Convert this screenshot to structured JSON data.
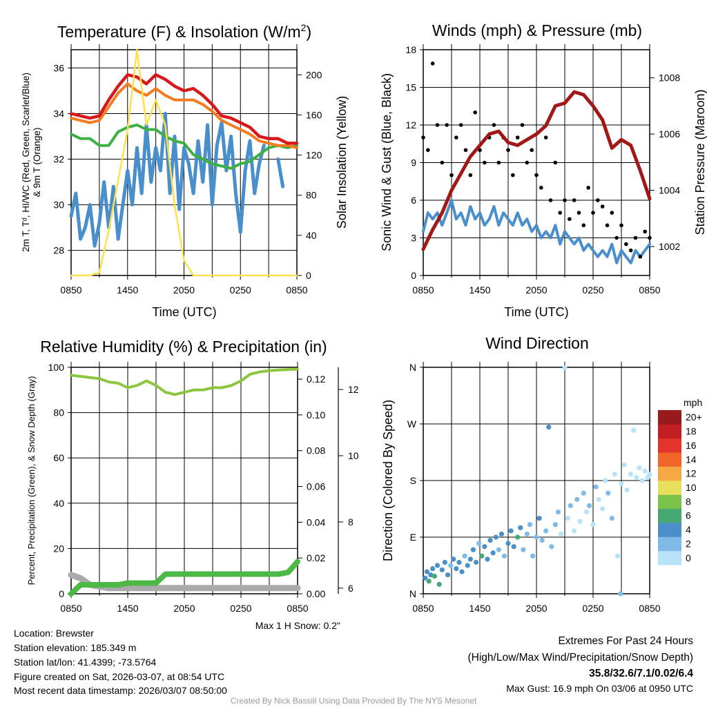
{
  "titles": {
    "temp_main": "Temperature (F) & Insolation (W/m",
    "temp_sup": "2",
    "temp_end": ")",
    "winds": "Winds (mph) & Pressure (mb)",
    "rh": "Relative Humidity (%) & Precipitation (in)",
    "wdir": "Wind Direction"
  },
  "axis_labels": {
    "time": "Time (UTC)",
    "temp_left_1": "2m T, Tᵈ, HI/WC (Red, Green, Scarlet/Blue)",
    "temp_left_2": "& 9m T (Orange)",
    "temp_right": "Solar Insolation (Yellow)",
    "wind_left": "Sonic Wind & Gust (Blue, Black)",
    "wind_right": "Station Pressure (Maroon)",
    "rh_left": "Percent, Precipitation (Green), & Snow Depth (Gray)",
    "wdir_left": "Direction (Colored By Speed)",
    "colorbar_unit": "mph"
  },
  "x_ticks": [
    "0850",
    "1450",
    "2050",
    "0250",
    "0850"
  ],
  "footer": {
    "location": "Location: Brewster",
    "elevation": "Station elevation: 185.349 m",
    "latlon": "Station lat/lon: 41.4399; -73.5764",
    "created": "Figure created on Sat, 2026-03-07, at 08:54 UTC",
    "recent": "Most recent data timestamp: 2026/03/07 08:50:00",
    "max_snow": "Max 1 H Snow: 0.2\"",
    "extremes_title": "Extremes For Past 24 Hours",
    "extremes_sub": "(High/Low/Max Wind/Precipitation/Snow Depth)",
    "extremes_values": "35.8/32.6/7.1/0.02/6.4",
    "max_gust": "Max Gust: 16.9 mph On 03/06 at 0950 UTC",
    "credit": "Created By Nick Bassill Using Data Provided By The NYS Mesonet"
  },
  "colors": {
    "temp": "#d7191c",
    "temp9m": "#f47b20",
    "green": "#3cb043",
    "blue": "#4a8fcc",
    "solar": "#ffe14d",
    "gust": "#000000",
    "pressure": "#a01818",
    "rh": "#8cc63f",
    "precip": "#4cb846",
    "snow": "#aaaaaa",
    "extremes": "#d7191c",
    "credit": "#999999"
  },
  "chart_data": [
    {
      "type": "line",
      "title": "Temperature (F) & Insolation (W/m2)",
      "xlabel": "Time (UTC)",
      "ylabel": "2m T, Td, HI/WC (Red, Green, Scarlet/Blue) & 9m T (Orange)",
      "y2label": "Solar Insolation (Yellow)",
      "x_unit": "hours since 0850 UTC",
      "xlim": [
        0,
        24
      ],
      "ylim": [
        26.9,
        36.8
      ],
      "y2lim": [
        0,
        225
      ],
      "yticks": [
        28,
        30,
        32,
        34,
        36
      ],
      "y2ticks": [
        0,
        40,
        80,
        120,
        160,
        200
      ],
      "series": [
        {
          "name": "2m T",
          "color_key": "temp",
          "step": 1,
          "values": [
            34.0,
            33.9,
            33.8,
            33.9,
            34.6,
            35.2,
            35.7,
            35.6,
            35.3,
            35.7,
            35.5,
            35.2,
            35.0,
            35.1,
            34.8,
            34.4,
            33.9,
            33.8,
            33.6,
            33.4,
            33.0,
            32.9,
            32.9,
            32.7,
            32.7
          ]
        },
        {
          "name": "9m T",
          "color_key": "temp9m",
          "step": 1,
          "values": [
            33.8,
            33.7,
            33.6,
            33.7,
            34.3,
            34.9,
            35.3,
            35.0,
            34.8,
            35.1,
            34.8,
            34.6,
            34.6,
            34.6,
            34.4,
            34.1,
            33.7,
            33.5,
            33.3,
            33.1,
            32.8,
            32.7,
            32.6,
            32.6,
            32.5
          ]
        },
        {
          "name": "Td",
          "color_key": "green",
          "step": 1,
          "values": [
            33.1,
            32.9,
            32.9,
            32.6,
            32.6,
            33.2,
            33.4,
            33.5,
            33.3,
            33.3,
            33.0,
            32.8,
            32.7,
            32.2,
            32.0,
            31.8,
            31.7,
            31.6,
            31.8,
            31.9,
            32.2,
            32.5,
            32.6,
            32.5,
            32.6
          ]
        },
        {
          "name": "HI/WC",
          "color_key": "blue",
          "step": 0.5,
          "values": [
            29.5,
            30.5,
            28.5,
            29.0,
            30.0,
            28.2,
            29.2,
            31.0,
            29.0,
            30.8,
            28.5,
            30.0,
            31.5,
            30.0,
            32.5,
            30.5,
            33.5,
            31.0,
            32.5,
            31.5,
            34.0,
            30.5,
            33.0,
            29.8,
            32.5,
            31.8,
            30.5,
            32.8,
            31.0,
            33.5,
            30.0,
            32.6,
            33.6,
            31.5,
            33.0,
            30.5,
            28.8,
            31.5,
            32.8,
            30.5,
            31.8,
            32.6,
            null,
            null,
            32.0,
            30.8,
            null,
            null,
            30.2
          ]
        },
        {
          "name": "Solar Insolation",
          "color_key": "solar",
          "axis": "right",
          "step": 1,
          "values": [
            0,
            0,
            0,
            3,
            45,
            95,
            145,
            225,
            150,
            175,
            150,
            70,
            15,
            0,
            0,
            0,
            0,
            0,
            0,
            0,
            0,
            0,
            0,
            0,
            0
          ]
        }
      ]
    },
    {
      "type": "line",
      "title": "Winds (mph) & Pressure (mb)",
      "xlabel": "Time (UTC)",
      "ylabel": "Sonic Wind & Gust (Blue, Black)",
      "y2label": "Station Pressure (Maroon)",
      "xlim": [
        0,
        24
      ],
      "ylim": [
        0,
        18
      ],
      "y2lim": [
        1000.97,
        1009.0
      ],
      "yticks": [
        0,
        3,
        6,
        9,
        12,
        15,
        18
      ],
      "y2ticks": [
        1002,
        1004,
        1006,
        1008
      ],
      "series": [
        {
          "name": "Sonic Wind",
          "color_key": "blue",
          "step": 0.5,
          "values": [
            3.5,
            5,
            4.5,
            5,
            4,
            5,
            6,
            4.5,
            5,
            4,
            5.5,
            4.5,
            5,
            4,
            4.5,
            5.5,
            4,
            5,
            4.5,
            4,
            5,
            4,
            4.5,
            3.5,
            4,
            3,
            3.5,
            3,
            4,
            2.5,
            3.5,
            3,
            2.5,
            3,
            2,
            2.5,
            2,
            1.5,
            2,
            1.5,
            2.5,
            1,
            2,
            1.5,
            1,
            2,
            1.5,
            2,
            2.5
          ]
        },
        {
          "name": "Gust",
          "color_key": "gust",
          "kind": "scatter",
          "step": 0.5,
          "values": [
            11,
            10,
            16.9,
            12,
            9,
            12,
            8,
            11,
            12,
            10,
            8,
            13,
            10,
            9,
            11,
            12,
            9,
            11,
            10,
            8,
            11,
            12,
            9,
            10,
            8,
            7,
            11,
            6,
            9,
            5,
            6,
            4.5,
            6,
            5,
            4,
            7,
            5,
            6,
            5.5,
            4,
            5,
            3,
            4,
            2.5,
            2,
            3,
            1.5,
            3.5,
            3
          ]
        },
        {
          "name": "Station Pressure",
          "color_key": "pressure",
          "axis": "right",
          "step": 1,
          "values": [
            1001.9,
            1002.6,
            1003.2,
            1004.0,
            1004.6,
            1005.2,
            1005.6,
            1006.0,
            1006.1,
            1005.7,
            1005.6,
            1005.8,
            1006.0,
            1006.3,
            1007.0,
            1007.1,
            1007.5,
            1007.4,
            1007.0,
            1006.5,
            1005.5,
            1005.8,
            1005.6,
            1004.7,
            1003.7
          ]
        }
      ]
    },
    {
      "type": "line",
      "title": "Relative Humidity (%) & Precipitation (in)",
      "ylabel": "Percent, Precipitation (Green), & Snow Depth (Gray)",
      "xlim": [
        0,
        24
      ],
      "ylim": [
        0,
        100
      ],
      "y2lim": [
        0,
        0.1266
      ],
      "y3lim": [
        5.83,
        12.67
      ],
      "yticks": [
        0,
        20,
        40,
        60,
        80,
        100
      ],
      "y2ticks": [
        "0.00",
        "0.02",
        "0.04",
        "0.06",
        "0.08",
        "0.10",
        "0.12"
      ],
      "y3ticks": [
        6,
        8,
        10,
        12
      ],
      "series": [
        {
          "name": "Relative Humidity",
          "color_key": "rh",
          "step": 1,
          "values": [
            96.5,
            96,
            95.5,
            95,
            93.5,
            93,
            91,
            92,
            94,
            92,
            89,
            88,
            89,
            90,
            90,
            91,
            91,
            92,
            94,
            97,
            98,
            98.5,
            98.8,
            99,
            99.2
          ]
        },
        {
          "name": "Snow Depth",
          "color_key": "snow",
          "axis": "snow",
          "step": 1,
          "values": [
            6.4,
            6.3,
            6.1,
            6.05,
            6.0,
            6.0,
            6.0,
            6.0,
            6.0,
            6.0,
            6.0,
            6.0,
            6.0,
            6.0,
            6.0,
            6.0,
            6.0,
            6.0,
            6.0,
            6.0,
            6.0,
            6.0,
            6.0,
            6.0,
            6.0
          ]
        },
        {
          "name": "Precipitation",
          "color_key": "precip",
          "axis": "right",
          "step": 1,
          "values": [
            0,
            0.005,
            0.005,
            0.005,
            0.005,
            0.005,
            0.006,
            0.006,
            0.006,
            0.006,
            0.011,
            0.011,
            0.011,
            0.011,
            0.011,
            0.011,
            0.011,
            0.011,
            0.011,
            0.011,
            0.011,
            0.011,
            0.011,
            0.012,
            0.018
          ]
        }
      ]
    },
    {
      "type": "scatter",
      "title": "Wind Direction",
      "ylabel": "Direction (Colored By Speed)",
      "xlim": [
        0,
        24
      ],
      "ylim": [
        0,
        360
      ],
      "yticks": [
        {
          "v": 0,
          "l": "N"
        },
        {
          "v": 90,
          "l": "E"
        },
        {
          "v": 180,
          "l": "S"
        },
        {
          "v": 270,
          "l": "W"
        },
        {
          "v": 360,
          "l": "N"
        }
      ],
      "colorbar": {
        "unit": "mph",
        "labels": [
          "0",
          "2",
          "4",
          "6",
          "8",
          "10",
          "12",
          "14",
          "16",
          "18",
          "20+"
        ],
        "colors": [
          "#b7e2f7",
          "#7fbbe6",
          "#4a8fc7",
          "#46a872",
          "#7ac24a",
          "#e6e05a",
          "#f7a845",
          "#f26528",
          "#e2342a",
          "#c21f25",
          "#981a1d"
        ]
      },
      "points": [
        [
          0.2,
          25,
          4
        ],
        [
          0.4,
          35,
          5
        ],
        [
          0.6,
          20,
          6
        ],
        [
          0.8,
          30,
          5
        ],
        [
          1,
          40,
          4
        ],
        [
          1.2,
          28,
          6
        ],
        [
          1.5,
          45,
          5
        ],
        [
          1.7,
          15,
          7
        ],
        [
          2,
          38,
          4
        ],
        [
          2.3,
          50,
          4
        ],
        [
          2.6,
          30,
          5
        ],
        [
          2.9,
          45,
          3
        ],
        [
          3.2,
          55,
          4
        ],
        [
          3.5,
          40,
          4
        ],
        [
          3.8,
          50,
          5
        ],
        [
          4.1,
          35,
          4
        ],
        [
          4.4,
          60,
          3
        ],
        [
          4.7,
          45,
          4
        ],
        [
          5,
          55,
          5
        ],
        [
          5.3,
          70,
          4
        ],
        [
          5.6,
          50,
          4
        ],
        [
          5.9,
          80,
          3
        ],
        [
          6.2,
          60,
          6
        ],
        [
          6.5,
          75,
          4
        ],
        [
          6.8,
          55,
          4
        ],
        [
          7.1,
          85,
          5
        ],
        [
          7.4,
          65,
          4
        ],
        [
          7.7,
          90,
          4
        ],
        [
          8,
          70,
          3
        ],
        [
          8.3,
          95,
          4
        ],
        [
          8.6,
          60,
          3
        ],
        [
          9,
          80,
          4
        ],
        [
          9.3,
          100,
          4
        ],
        [
          9.6,
          75,
          5
        ],
        [
          10,
          90,
          6
        ],
        [
          10.3,
          105,
          4
        ],
        [
          10.6,
          70,
          3
        ],
        [
          11,
          95,
          3
        ],
        [
          11.3,
          110,
          3
        ],
        [
          11.6,
          60,
          2
        ],
        [
          12,
          90,
          3
        ],
        [
          12.3,
          120,
          4
        ],
        [
          12.6,
          85,
          2
        ],
        [
          13,
          100,
          3
        ],
        [
          13.3,
          265,
          4
        ],
        [
          13.6,
          75,
          2
        ],
        [
          14,
          110,
          2
        ],
        [
          14.3,
          130,
          2
        ],
        [
          14.6,
          95,
          1
        ],
        [
          15,
          359,
          1
        ],
        [
          15.3,
          120,
          1
        ],
        [
          15.6,
          140,
          2
        ],
        [
          16,
          100,
          1
        ],
        [
          16.3,
          150,
          2
        ],
        [
          16.6,
          115,
          1
        ],
        [
          17,
          160,
          2
        ],
        [
          17.3,
          130,
          1
        ],
        [
          17.6,
          140,
          2
        ],
        [
          18,
          110,
          1
        ],
        [
          18.3,
          170,
          2
        ],
        [
          18.6,
          150,
          1
        ],
        [
          19,
          135,
          1
        ],
        [
          19.3,
          180,
          1
        ],
        [
          19.6,
          160,
          2
        ],
        [
          20,
          120,
          2
        ],
        [
          20.3,
          190,
          1
        ],
        [
          20.6,
          60,
          1
        ],
        [
          20.9,
          0,
          2
        ],
        [
          21,
          175,
          1
        ],
        [
          21.3,
          205,
          1
        ],
        [
          21.6,
          165,
          1
        ],
        [
          22,
          190,
          1
        ],
        [
          22.3,
          260,
          1
        ],
        [
          22.6,
          185,
          1
        ],
        [
          22.9,
          200,
          1
        ],
        [
          23.2,
          180,
          1
        ],
        [
          23.5,
          195,
          0
        ],
        [
          23.8,
          185,
          1
        ],
        [
          24,
          190,
          1
        ]
      ]
    }
  ]
}
